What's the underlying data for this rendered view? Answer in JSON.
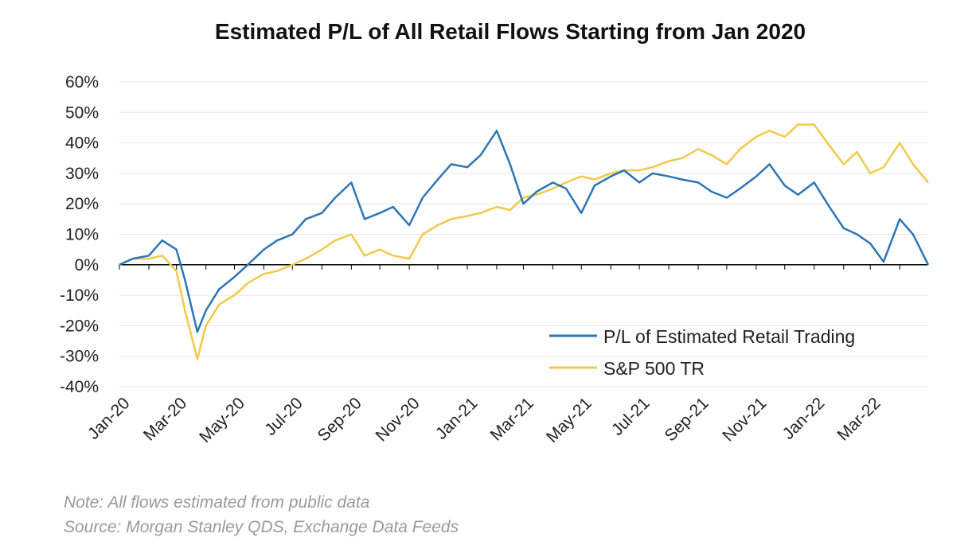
{
  "chart_data": {
    "type": "line",
    "title": "Estimated P/L of All Retail Flows Starting from Jan 2020",
    "note": "Note:  All flows estimated from public data",
    "source": "Source: Morgan Stanley QDS, Exchange Data Feeds",
    "x_tick_labels": [
      "Jan-20",
      "Mar-20",
      "May-20",
      "Jul-20",
      "Sep-20",
      "Nov-20",
      "Jan-21",
      "Mar-21",
      "May-21",
      "Jul-21",
      "Sep-21",
      "Nov-21",
      "Jan-22",
      "Mar-22"
    ],
    "y_tick_labels": [
      "60%",
      "50%",
      "40%",
      "30%",
      "20%",
      "10%",
      "0%",
      "-10%",
      "-20%",
      "-30%",
      "-40%"
    ],
    "ylim": [
      -40,
      60
    ],
    "y_unit": "%",
    "grid": true,
    "legend_position": "bottom-right",
    "x": [
      "2020-01-01",
      "2020-01-15",
      "2020-02-01",
      "2020-02-15",
      "2020-03-01",
      "2020-03-10",
      "2020-03-23",
      "2020-04-01",
      "2020-04-15",
      "2020-05-01",
      "2020-05-15",
      "2020-06-01",
      "2020-06-15",
      "2020-07-01",
      "2020-07-15",
      "2020-08-01",
      "2020-08-15",
      "2020-09-01",
      "2020-09-15",
      "2020-10-01",
      "2020-10-15",
      "2020-11-01",
      "2020-11-15",
      "2020-12-01",
      "2020-12-15",
      "2021-01-01",
      "2021-01-15",
      "2021-02-01",
      "2021-02-15",
      "2021-03-01",
      "2021-03-15",
      "2021-04-01",
      "2021-04-15",
      "2021-05-01",
      "2021-05-15",
      "2021-06-01",
      "2021-06-15",
      "2021-07-01",
      "2021-07-15",
      "2021-08-01",
      "2021-08-15",
      "2021-09-01",
      "2021-09-15",
      "2021-10-01",
      "2021-10-15",
      "2021-11-01",
      "2021-11-15",
      "2021-12-01",
      "2021-12-15",
      "2022-01-01",
      "2022-01-15",
      "2022-02-01",
      "2022-02-15",
      "2022-03-01",
      "2022-03-15",
      "2022-04-01",
      "2022-04-15",
      "2022-05-01"
    ],
    "series": [
      {
        "name": "P/L of Estimated Retail Trading",
        "color": "#2e75b6",
        "values": [
          0,
          2,
          3,
          8,
          5,
          -5,
          -22,
          -15,
          -8,
          -4,
          0,
          5,
          8,
          10,
          15,
          17,
          22,
          27,
          15,
          17,
          19,
          13,
          22,
          28,
          33,
          32,
          36,
          44,
          33,
          20,
          24,
          27,
          25,
          17,
          26,
          29,
          31,
          27,
          30,
          29,
          28,
          27,
          24,
          22,
          25,
          29,
          33,
          26,
          23,
          27,
          20,
          12,
          10,
          7,
          1,
          15,
          10,
          0
        ]
      },
      {
        "name": "S&P 500 TR",
        "color": "#f2c94c",
        "values": [
          0,
          2,
          2,
          3,
          -2,
          -15,
          -31,
          -20,
          -13,
          -10,
          -6,
          -3,
          -2,
          0,
          2,
          5,
          8,
          10,
          3,
          5,
          3,
          2,
          10,
          13,
          15,
          16,
          17,
          19,
          18,
          22,
          23,
          25,
          27,
          29,
          28,
          30,
          31,
          31,
          32,
          34,
          35,
          38,
          36,
          33,
          38,
          42,
          44,
          42,
          46,
          46,
          40,
          33,
          37,
          30,
          32,
          40,
          33,
          27
        ]
      }
    ]
  }
}
